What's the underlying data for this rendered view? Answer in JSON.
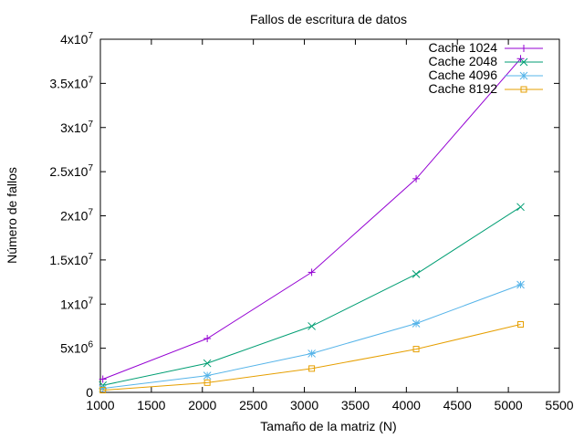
{
  "chart_data": {
    "type": "line",
    "title": "Fallos de escritura de datos",
    "xlabel": "Tamaño de la matriz (N)",
    "ylabel": "Número de fallos",
    "xlim": [
      1000,
      5500
    ],
    "ylim": [
      0,
      40000000
    ],
    "x_ticks": [
      1000,
      1500,
      2000,
      2500,
      3000,
      3500,
      4000,
      4500,
      5000,
      5500
    ],
    "x_tick_labels": [
      "1000",
      "1500",
      "2000",
      "2500",
      "3000",
      "3500",
      "4000",
      "4500",
      "5000",
      "5500"
    ],
    "y_ticks": [
      0,
      5000000,
      10000000,
      15000000,
      20000000,
      25000000,
      30000000,
      35000000,
      40000000
    ],
    "y_tick_labels": [
      {
        "base": "0",
        "exp": ""
      },
      {
        "base": "5x10",
        "exp": "6"
      },
      {
        "base": "1x10",
        "exp": "7"
      },
      {
        "base": "1.5x10",
        "exp": "7"
      },
      {
        "base": "2x10",
        "exp": "7"
      },
      {
        "base": "2.5x10",
        "exp": "7"
      },
      {
        "base": "3x10",
        "exp": "7"
      },
      {
        "base": "3.5x10",
        "exp": "7"
      },
      {
        "base": "4x10",
        "exp": "7"
      }
    ],
    "grid": false,
    "legend_position": "top-right",
    "x": [
      1024,
      2048,
      3072,
      4096,
      5120
    ],
    "series": [
      {
        "name": "Cache 1024",
        "color": "#9400d3",
        "marker": "plus",
        "values": [
          1500000,
          6100000,
          13600000,
          24200000,
          37800000
        ]
      },
      {
        "name": "Cache 2048",
        "color": "#009e73",
        "marker": "cross",
        "values": [
          800000,
          3300000,
          7500000,
          13400000,
          21000000
        ]
      },
      {
        "name": "Cache 4096",
        "color": "#56b4e9",
        "marker": "star",
        "values": [
          450000,
          1900000,
          4400000,
          7800000,
          12200000
        ]
      },
      {
        "name": "Cache 8192",
        "color": "#e69f00",
        "marker": "square",
        "values": [
          250000,
          1100000,
          2700000,
          4900000,
          7700000
        ]
      }
    ]
  }
}
